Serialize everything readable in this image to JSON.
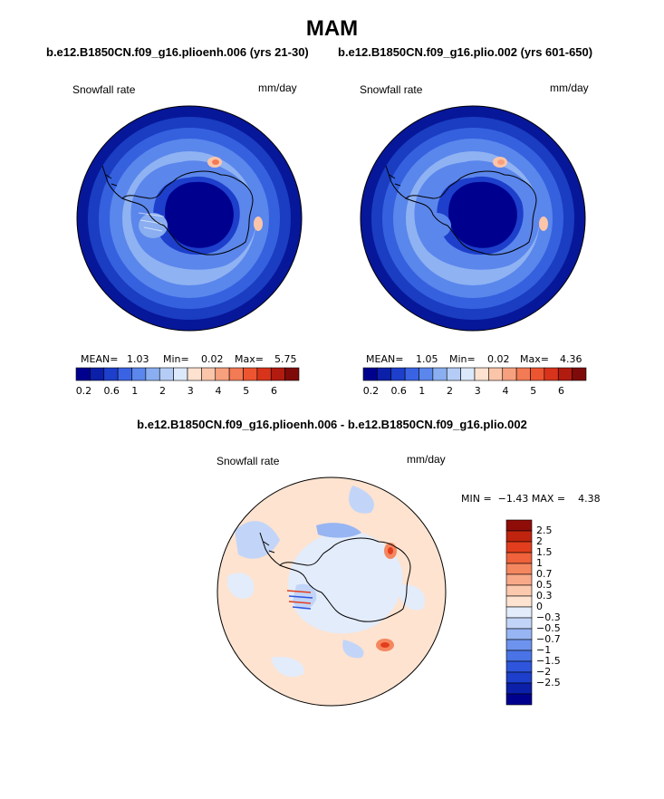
{
  "figure_title": "MAM",
  "panels": [
    {
      "case": "b.e12.B1850CN.f09_g16.plioenh.006 (yrs 21-30)",
      "field": "Snowfall rate",
      "units": "mm/day",
      "stats": {
        "mean_label": "MEAN=",
        "mean": "1.03",
        "min_label": "Min=",
        "min": "0.02",
        "max_label": "Max=",
        "max": "5.75"
      }
    },
    {
      "case": "b.e12.B1850CN.f09_g16.plio.002 (yrs 601-650)",
      "field": "Snowfall rate",
      "units": "mm/day",
      "stats": {
        "mean_label": "MEAN=",
        "mean": "1.05",
        "min_label": "Min=",
        "min": "0.02",
        "max_label": "Max=",
        "max": "4.36"
      }
    }
  ],
  "diff_panel": {
    "title": "b.e12.B1850CN.f09_g16.plioenh.006 - b.e12.B1850CN.f09_g16.plio.002",
    "field": "Snowfall rate",
    "units": "mm/day",
    "minmax_text": "MIN =  −1.43 MAX =    4.38"
  },
  "colorbar_top": {
    "colors": [
      "#00008f",
      "#0b1fa8",
      "#1d3fcb",
      "#3a63e4",
      "#5b86ec",
      "#8aaef0",
      "#b5cdf6",
      "#dce9fb",
      "#fde2d0",
      "#fbc5aa",
      "#f7a07e",
      "#f27a55",
      "#ec5530",
      "#d8341b",
      "#b21b10",
      "#7f0a0a"
    ],
    "tick_labels": [
      "0.2",
      "0.6",
      "1",
      "2",
      "3",
      "4",
      "5",
      "6"
    ]
  },
  "colorbar_diff": {
    "colors": [
      "#00008f",
      "#0b1fa8",
      "#1d3fcb",
      "#2f55dd",
      "#4a73e6",
      "#6d93ee",
      "#97b5f3",
      "#c2d5f8",
      "#e3ecfb",
      "#fde3d0",
      "#fbc9ad",
      "#f8a988",
      "#f5875f",
      "#f0623b",
      "#e23e1d",
      "#c0240f",
      "#8f0d08"
    ],
    "tick_labels": [
      "2.5",
      "2",
      "1.5",
      "1",
      "0.7",
      "0.5",
      "0.3",
      "0",
      "−0.3",
      "−0.5",
      "−0.7",
      "−1",
      "−1.5",
      "−2",
      "−2.5"
    ]
  },
  "chart_data": [
    {
      "type": "heatmap",
      "title": "b.e12.B1850CN.f09_g16.plioenh.006 (yrs 21-30)",
      "variable": "Snowfall rate",
      "units": "mm/day",
      "projection": "south polar stereographic",
      "mean": 1.03,
      "min": 0.02,
      "max": 5.75,
      "levels": [
        0.2,
        0.6,
        1,
        2,
        3,
        4,
        5,
        6
      ]
    },
    {
      "type": "heatmap",
      "title": "b.e12.B1850CN.f09_g16.plio.002 (yrs 601-650)",
      "variable": "Snowfall rate",
      "units": "mm/day",
      "projection": "south polar stereographic",
      "mean": 1.05,
      "min": 0.02,
      "max": 4.36,
      "levels": [
        0.2,
        0.6,
        1,
        2,
        3,
        4,
        5,
        6
      ]
    },
    {
      "type": "heatmap",
      "title": "b.e12.B1850CN.f09_g16.plioenh.006 - b.e12.B1850CN.f09_g16.plio.002",
      "variable": "Snowfall rate",
      "units": "mm/day",
      "projection": "south polar stereographic",
      "min": -1.43,
      "max": 4.38,
      "levels": [
        -2.5,
        -2,
        -1.5,
        -1,
        -0.7,
        -0.5,
        -0.3,
        0,
        0.3,
        0.5,
        0.7,
        1,
        1.5,
        2,
        2.5
      ]
    }
  ]
}
